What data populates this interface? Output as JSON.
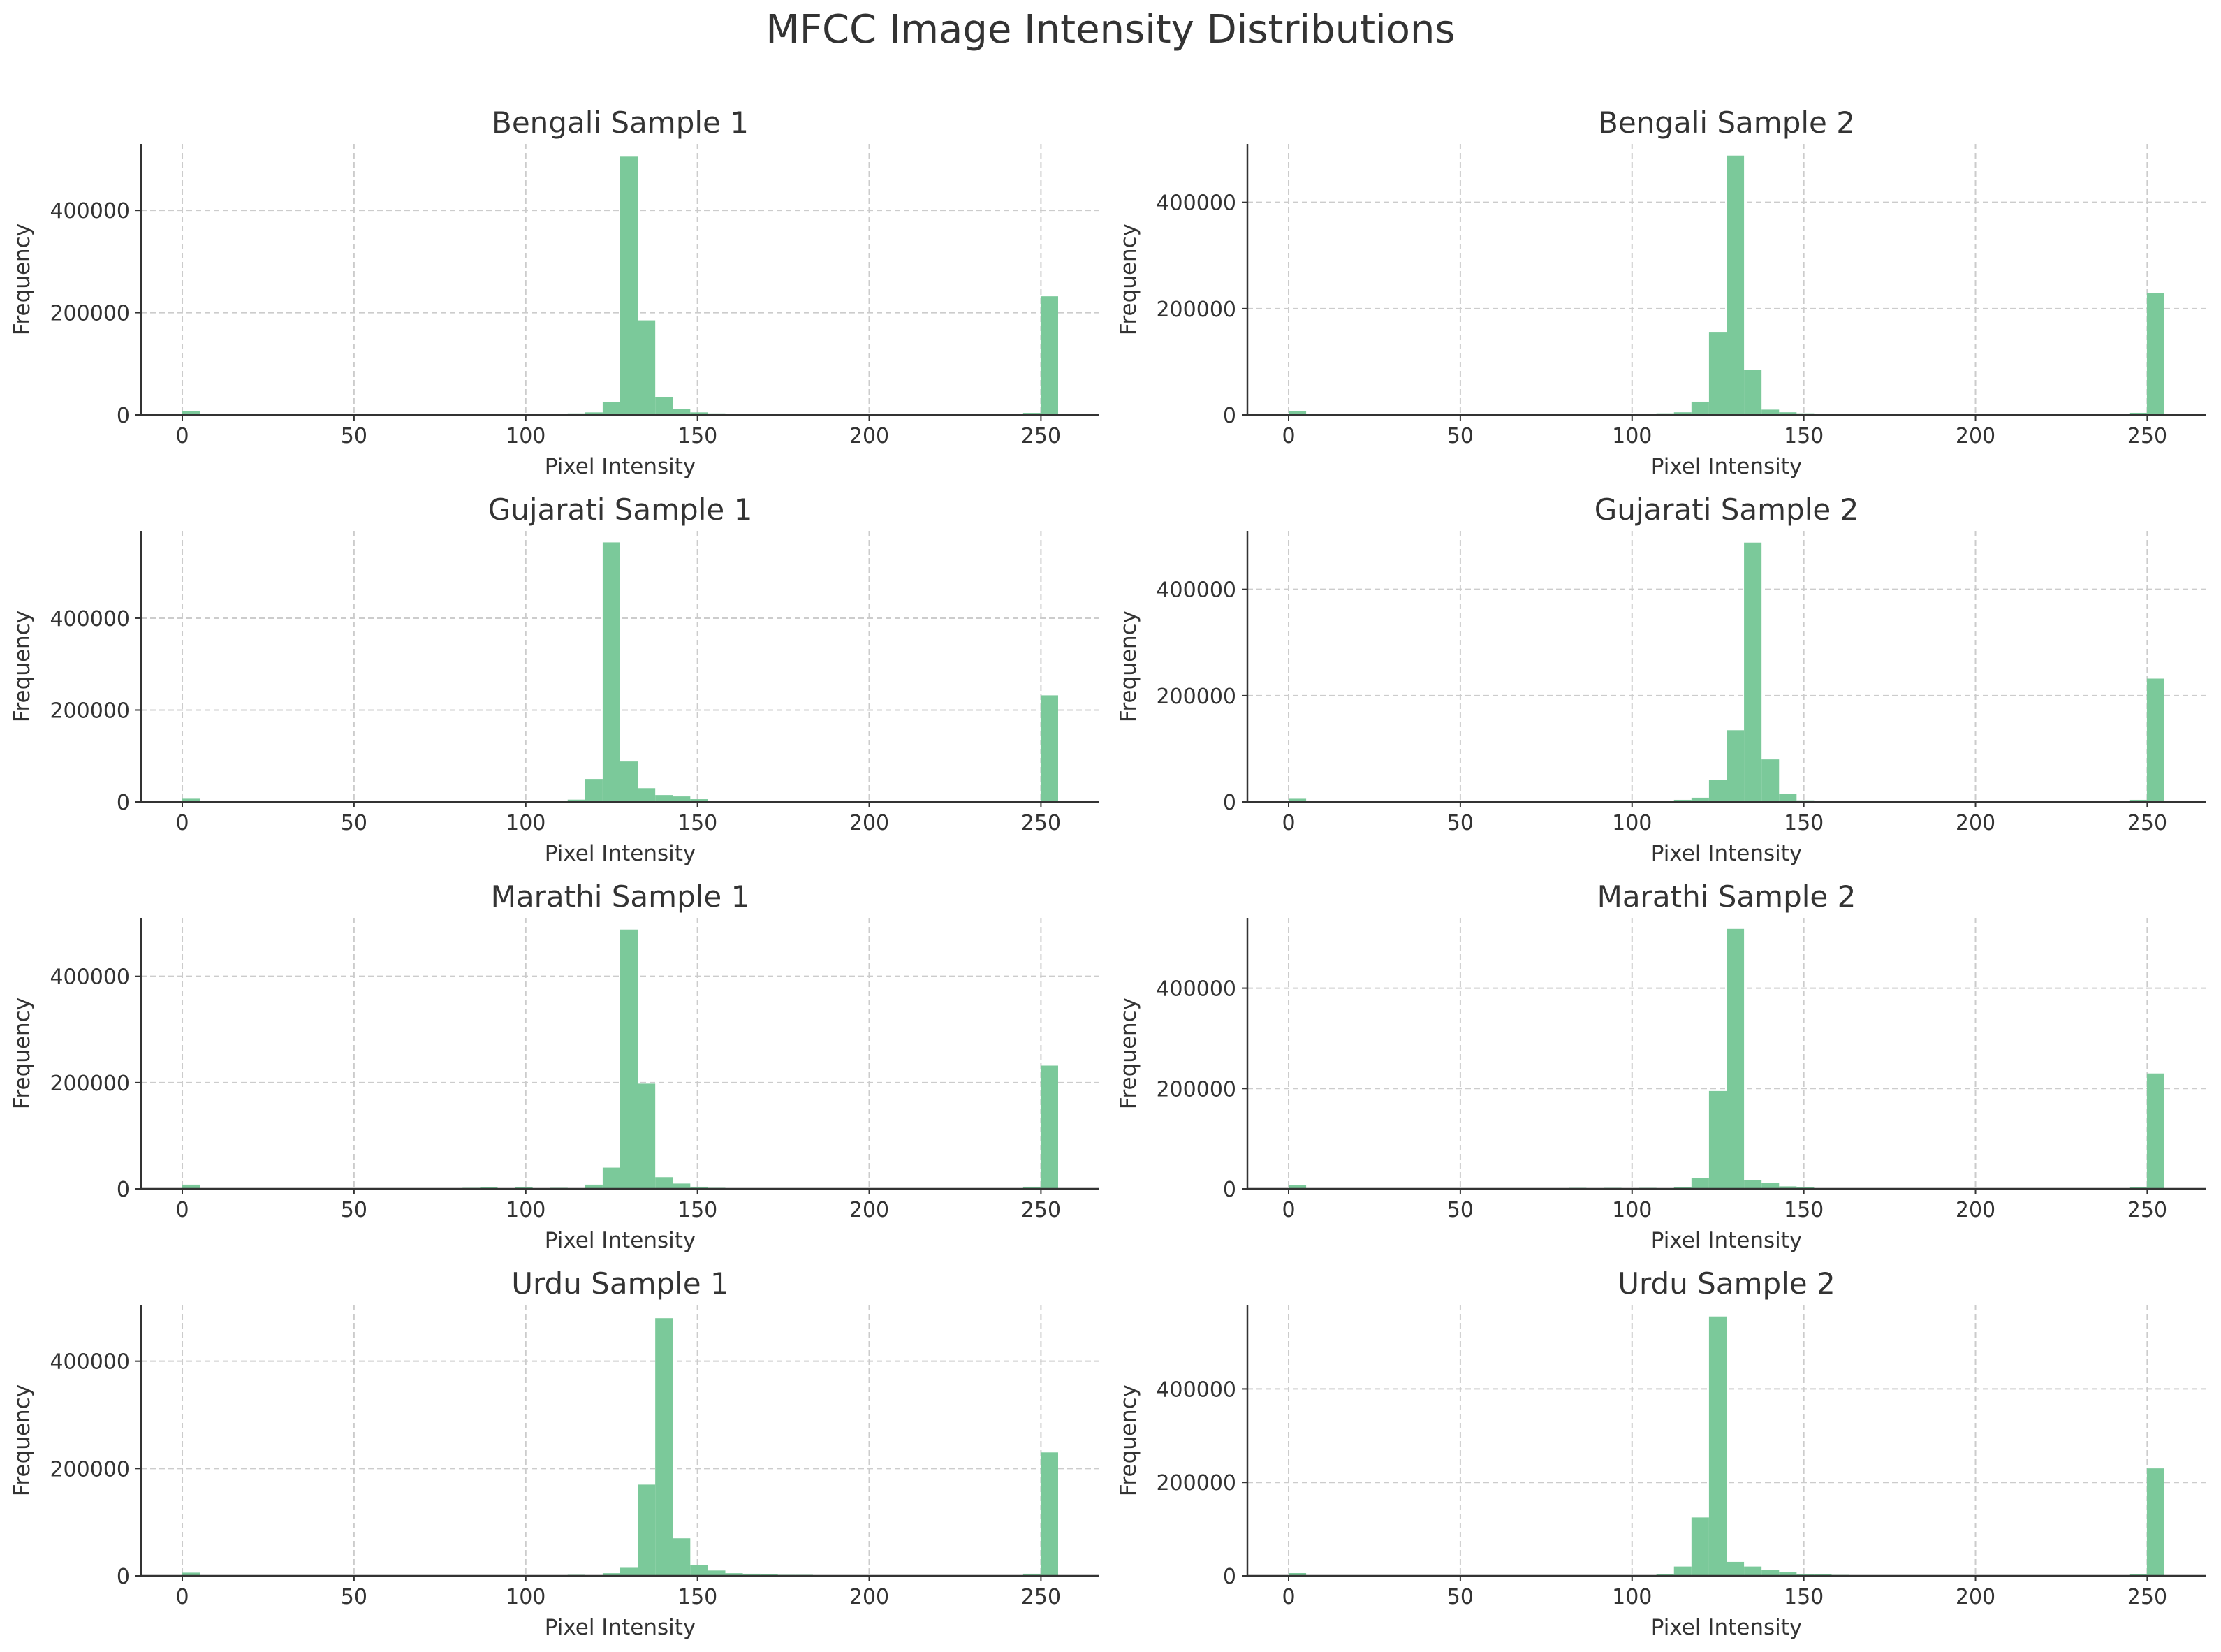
{
  "figure": {
    "title": "MFCC Image Intensity Distributions",
    "bar_color": "#7BC99A",
    "axis_color": "#333333",
    "grid_color": "#cccccc"
  },
  "chart_data": [
    {
      "type": "bar",
      "title": "Bengali Sample 1",
      "xlabel": "Pixel Intensity",
      "ylabel": "Frequency",
      "xlim": [
        -12,
        267
      ],
      "ylim": [
        0,
        530000
      ],
      "xticks": [
        0,
        50,
        100,
        150,
        200,
        250
      ],
      "yticks": [
        0,
        200000,
        400000
      ],
      "bin_width": 5.1,
      "bins": [
        {
          "x": 0,
          "y": 8000
        },
        {
          "x": 86.7,
          "y": 2000
        },
        {
          "x": 96.9,
          "y": 2000
        },
        {
          "x": 102,
          "y": 2000
        },
        {
          "x": 107.1,
          "y": 2000
        },
        {
          "x": 112.2,
          "y": 3000
        },
        {
          "x": 117.3,
          "y": 5000
        },
        {
          "x": 122.4,
          "y": 25000
        },
        {
          "x": 127.5,
          "y": 505000
        },
        {
          "x": 132.6,
          "y": 185000
        },
        {
          "x": 137.7,
          "y": 35000
        },
        {
          "x": 142.8,
          "y": 12000
        },
        {
          "x": 147.9,
          "y": 5000
        },
        {
          "x": 153,
          "y": 3000
        },
        {
          "x": 158.1,
          "y": 2000
        },
        {
          "x": 163.2,
          "y": 1000
        },
        {
          "x": 244.8,
          "y": 4000
        },
        {
          "x": 249.9,
          "y": 232000
        }
      ]
    },
    {
      "type": "bar",
      "title": "Bengali Sample 2",
      "xlabel": "Pixel Intensity",
      "ylabel": "Frequency",
      "xlim": [
        -12,
        267
      ],
      "ylim": [
        0,
        510000
      ],
      "xticks": [
        0,
        50,
        100,
        150,
        200,
        250
      ],
      "yticks": [
        0,
        200000,
        400000
      ],
      "bin_width": 5.1,
      "bins": [
        {
          "x": 0,
          "y": 7000
        },
        {
          "x": 96.9,
          "y": 2000
        },
        {
          "x": 102,
          "y": 2000
        },
        {
          "x": 107.1,
          "y": 3000
        },
        {
          "x": 112.2,
          "y": 5000
        },
        {
          "x": 117.3,
          "y": 25000
        },
        {
          "x": 122.4,
          "y": 155000
        },
        {
          "x": 127.5,
          "y": 488000
        },
        {
          "x": 132.6,
          "y": 85000
        },
        {
          "x": 137.7,
          "y": 10000
        },
        {
          "x": 142.8,
          "y": 5000
        },
        {
          "x": 147.9,
          "y": 3000
        },
        {
          "x": 153,
          "y": 1000
        },
        {
          "x": 244.8,
          "y": 4000
        },
        {
          "x": 249.9,
          "y": 230000
        }
      ]
    },
    {
      "type": "bar",
      "title": "Gujarati Sample 1",
      "xlabel": "Pixel Intensity",
      "ylabel": "Frequency",
      "xlim": [
        -12,
        267
      ],
      "ylim": [
        0,
        590000
      ],
      "xticks": [
        0,
        50,
        100,
        150,
        200,
        250
      ],
      "yticks": [
        0,
        200000,
        400000
      ],
      "bin_width": 5.1,
      "bins": [
        {
          "x": 0,
          "y": 7000
        },
        {
          "x": 86.7,
          "y": 2000
        },
        {
          "x": 96.9,
          "y": 2000
        },
        {
          "x": 107.1,
          "y": 3000
        },
        {
          "x": 112.2,
          "y": 5000
        },
        {
          "x": 117.3,
          "y": 50000
        },
        {
          "x": 122.4,
          "y": 565000
        },
        {
          "x": 127.5,
          "y": 88000
        },
        {
          "x": 132.6,
          "y": 30000
        },
        {
          "x": 137.7,
          "y": 15000
        },
        {
          "x": 142.8,
          "y": 12000
        },
        {
          "x": 147.9,
          "y": 6000
        },
        {
          "x": 153,
          "y": 3000
        },
        {
          "x": 158.1,
          "y": 1000
        },
        {
          "x": 244.8,
          "y": 3000
        },
        {
          "x": 249.9,
          "y": 232000
        }
      ]
    },
    {
      "type": "bar",
      "title": "Gujarati Sample 2",
      "xlabel": "Pixel Intensity",
      "ylabel": "Frequency",
      "xlim": [
        -12,
        267
      ],
      "ylim": [
        0,
        510000
      ],
      "xticks": [
        0,
        50,
        100,
        150,
        200,
        250
      ],
      "yticks": [
        0,
        200000,
        400000
      ],
      "bin_width": 5.1,
      "bins": [
        {
          "x": 0,
          "y": 6000
        },
        {
          "x": 96.9,
          "y": 2000
        },
        {
          "x": 102,
          "y": 2000
        },
        {
          "x": 107.1,
          "y": 2000
        },
        {
          "x": 112.2,
          "y": 4000
        },
        {
          "x": 117.3,
          "y": 8000
        },
        {
          "x": 122.4,
          "y": 42000
        },
        {
          "x": 127.5,
          "y": 135000
        },
        {
          "x": 132.6,
          "y": 488000
        },
        {
          "x": 137.7,
          "y": 80000
        },
        {
          "x": 142.8,
          "y": 15000
        },
        {
          "x": 147.9,
          "y": 3000
        },
        {
          "x": 163.2,
          "y": 2000
        },
        {
          "x": 168.3,
          "y": 2000
        },
        {
          "x": 173.4,
          "y": 1000
        },
        {
          "x": 244.8,
          "y": 4000
        },
        {
          "x": 249.9,
          "y": 232000
        }
      ]
    },
    {
      "type": "bar",
      "title": "Marathi Sample 1",
      "xlabel": "Pixel Intensity",
      "ylabel": "Frequency",
      "xlim": [
        -12,
        267
      ],
      "ylim": [
        0,
        510000
      ],
      "xticks": [
        0,
        50,
        100,
        150,
        200,
        250
      ],
      "yticks": [
        0,
        200000,
        400000
      ],
      "bin_width": 5.1,
      "bins": [
        {
          "x": 0,
          "y": 8000
        },
        {
          "x": 61.2,
          "y": 1000
        },
        {
          "x": 81.6,
          "y": 2000
        },
        {
          "x": 86.7,
          "y": 3000
        },
        {
          "x": 96.9,
          "y": 3000
        },
        {
          "x": 107.1,
          "y": 2000
        },
        {
          "x": 117.3,
          "y": 8000
        },
        {
          "x": 122.4,
          "y": 40000
        },
        {
          "x": 127.5,
          "y": 488000
        },
        {
          "x": 132.6,
          "y": 198000
        },
        {
          "x": 137.7,
          "y": 22000
        },
        {
          "x": 142.8,
          "y": 10000
        },
        {
          "x": 147.9,
          "y": 4000
        },
        {
          "x": 153,
          "y": 2000
        },
        {
          "x": 244.8,
          "y": 4000
        },
        {
          "x": 249.9,
          "y": 232000
        }
      ]
    },
    {
      "type": "bar",
      "title": "Marathi Sample 2",
      "xlabel": "Pixel Intensity",
      "ylabel": "Frequency",
      "xlim": [
        -12,
        267
      ],
      "ylim": [
        0,
        540000
      ],
      "xticks": [
        0,
        50,
        100,
        150,
        200,
        250
      ],
      "yticks": [
        0,
        200000,
        400000
      ],
      "bin_width": 5.1,
      "bins": [
        {
          "x": 0,
          "y": 7000
        },
        {
          "x": 25.5,
          "y": 1000
        },
        {
          "x": 81.6,
          "y": 2000
        },
        {
          "x": 91.8,
          "y": 2000
        },
        {
          "x": 102,
          "y": 2000
        },
        {
          "x": 112.2,
          "y": 3000
        },
        {
          "x": 117.3,
          "y": 22000
        },
        {
          "x": 122.4,
          "y": 195000
        },
        {
          "x": 127.5,
          "y": 518000
        },
        {
          "x": 132.6,
          "y": 17000
        },
        {
          "x": 137.7,
          "y": 12000
        },
        {
          "x": 142.8,
          "y": 5000
        },
        {
          "x": 147.9,
          "y": 3000
        },
        {
          "x": 153,
          "y": 1000
        },
        {
          "x": 244.8,
          "y": 4000
        },
        {
          "x": 249.9,
          "y": 230000
        }
      ]
    },
    {
      "type": "bar",
      "title": "Urdu Sample 1",
      "xlabel": "Pixel Intensity",
      "ylabel": "Frequency",
      "xlim": [
        -12,
        267
      ],
      "ylim": [
        0,
        505000
      ],
      "xticks": [
        0,
        50,
        100,
        150,
        200,
        250
      ],
      "yticks": [
        0,
        200000,
        400000
      ],
      "bin_width": 5.1,
      "bins": [
        {
          "x": 0,
          "y": 6000
        },
        {
          "x": 112.2,
          "y": 2000
        },
        {
          "x": 122.4,
          "y": 5000
        },
        {
          "x": 127.5,
          "y": 15000
        },
        {
          "x": 132.6,
          "y": 170000
        },
        {
          "x": 137.7,
          "y": 480000
        },
        {
          "x": 142.8,
          "y": 70000
        },
        {
          "x": 147.9,
          "y": 20000
        },
        {
          "x": 153,
          "y": 10000
        },
        {
          "x": 158.1,
          "y": 5000
        },
        {
          "x": 163.2,
          "y": 4000
        },
        {
          "x": 168.3,
          "y": 3000
        },
        {
          "x": 173.4,
          "y": 2000
        },
        {
          "x": 178.5,
          "y": 2000
        },
        {
          "x": 244.8,
          "y": 4000
        },
        {
          "x": 249.9,
          "y": 230000
        }
      ]
    },
    {
      "type": "bar",
      "title": "Urdu Sample 2",
      "xlabel": "Pixel Intensity",
      "ylabel": "Frequency",
      "xlim": [
        -12,
        267
      ],
      "ylim": [
        0,
        580000
      ],
      "xticks": [
        0,
        50,
        100,
        150,
        200,
        250
      ],
      "yticks": [
        0,
        200000,
        400000
      ],
      "bin_width": 5.1,
      "bins": [
        {
          "x": 0,
          "y": 6000
        },
        {
          "x": 102,
          "y": 1000
        },
        {
          "x": 107.1,
          "y": 3000
        },
        {
          "x": 112.2,
          "y": 20000
        },
        {
          "x": 117.3,
          "y": 125000
        },
        {
          "x": 122.4,
          "y": 555000
        },
        {
          "x": 127.5,
          "y": 30000
        },
        {
          "x": 132.6,
          "y": 20000
        },
        {
          "x": 137.7,
          "y": 12000
        },
        {
          "x": 142.8,
          "y": 8000
        },
        {
          "x": 147.9,
          "y": 4000
        },
        {
          "x": 153,
          "y": 3000
        },
        {
          "x": 158.1,
          "y": 2000
        },
        {
          "x": 163.2,
          "y": 1000
        },
        {
          "x": 244.8,
          "y": 3000
        },
        {
          "x": 249.9,
          "y": 230000
        }
      ]
    }
  ]
}
